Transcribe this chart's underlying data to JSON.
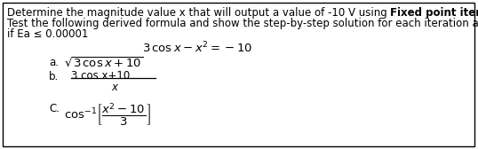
{
  "background_color": "#ffffff",
  "border_color": "#000000",
  "line1_normal": "Determine the magnitude value x that will output a value of -10 V using ",
  "line1_bold": "Fixed point iteration method",
  "line1_end": ".",
  "line2": "Test the following derived formula and show the step-by-step solution for each iteration and terminate",
  "line3": "if Ea ≤ 0.00001",
  "eq_main": "3 cos x − x² = −10",
  "a_label": "a.",
  "b_label": "b.",
  "c_label": "C.",
  "item_b_num": "3 cos x+10",
  "item_b_den": "x",
  "fs_body": 8.5,
  "fs_eq": 9.0,
  "text_color": "#000000",
  "fig_w": 5.38,
  "fig_h": 1.68,
  "dpi": 100
}
